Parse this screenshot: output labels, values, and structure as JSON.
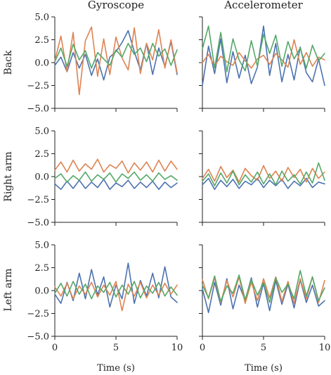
{
  "chart_data": {
    "type": "line",
    "colors": [
      "#4c72b0",
      "#dd8452",
      "#55a868"
    ],
    "column_titles": [
      "Gyroscope",
      "Accelerometer"
    ],
    "row_labels": [
      "Back",
      "Right arm",
      "Left arm"
    ],
    "xlabel": "Time (s)",
    "xlim": [
      0,
      10
    ],
    "ylim": [
      -5.0,
      5.0
    ],
    "xticks": [
      0,
      5,
      10
    ],
    "xtick_labels": [
      "0",
      "5",
      "10"
    ],
    "yticks": [
      5.0,
      2.5,
      0.0,
      -2.5,
      -5.0
    ],
    "ytick_labels": [
      "5.0",
      "2.5",
      "0.0",
      "−2.5",
      "−5.0"
    ],
    "grid": false,
    "legend": "none",
    "panels": [
      {
        "row": "Back",
        "column": "Gyroscope",
        "series": [
          {
            "x": [
              0,
              0.5,
              1,
              1.5,
              2,
              2.5,
              3,
              3.5,
              4,
              4.5,
              5,
              5.5,
              6,
              6.5,
              7,
              7.5,
              8,
              8.5,
              9,
              9.5,
              10
            ],
            "values": [
              -0.3,
              0.6,
              -1.0,
              1.1,
              -0.6,
              0.9,
              -1.4,
              0.4,
              -1.9,
              0.6,
              1.2,
              2.2,
              3.5,
              1.2,
              -0.8,
              2.1,
              -1.3,
              1.6,
              -0.4,
              2.3,
              -1.3
            ]
          },
          {
            "x": [
              0,
              0.5,
              1,
              1.5,
              2,
              2.5,
              3,
              3.5,
              4,
              4.5,
              5,
              5.5,
              6,
              6.5,
              7,
              7.5,
              8,
              8.5,
              9,
              9.5,
              10
            ],
            "values": [
              0.2,
              2.9,
              -1.0,
              3.3,
              -3.5,
              2.4,
              3.9,
              -1.5,
              2.6,
              -1.3,
              2.8,
              0.5,
              -0.8,
              3.8,
              -1.2,
              2.1,
              0.3,
              3.6,
              -0.6,
              2.5,
              -1.1
            ]
          },
          {
            "x": [
              0,
              0.5,
              1,
              1.5,
              2,
              2.5,
              3,
              3.5,
              4,
              4.5,
              5,
              5.5,
              6,
              6.5,
              7,
              7.5,
              8,
              8.5,
              9,
              9.5,
              10
            ],
            "values": [
              0.1,
              1.6,
              -0.4,
              2.0,
              0.3,
              1.3,
              -0.6,
              1.1,
              0.4,
              -0.3,
              1.4,
              0.6,
              2.1,
              0.9,
              1.6,
              0.1,
              2.1,
              0.7,
              1.5,
              -0.3,
              1.4
            ]
          }
        ]
      },
      {
        "row": "Back",
        "column": "Accelerometer",
        "series": [
          {
            "x": [
              0,
              0.5,
              1,
              1.5,
              2,
              2.5,
              3,
              3.5,
              4,
              4.5,
              5,
              5.5,
              6,
              6.5,
              7,
              7.5,
              8,
              8.5,
              9,
              9.5,
              10
            ],
            "values": [
              -2.5,
              1.8,
              -1.2,
              2.6,
              -2.2,
              1.2,
              -1.7,
              0.8,
              -2.3,
              -0.5,
              4.0,
              -1.4,
              2.1,
              -2.1,
              0.9,
              -1.9,
              1.7,
              -1.1,
              -2.1,
              0.4,
              -2.5
            ]
          },
          {
            "x": [
              0,
              0.5,
              1,
              1.5,
              2,
              2.5,
              3,
              3.5,
              4,
              4.5,
              5,
              5.5,
              6,
              6.5,
              7,
              7.5,
              8,
              8.5,
              9,
              9.5,
              10
            ],
            "values": [
              0.0,
              0.9,
              -0.4,
              0.7,
              0.1,
              -0.3,
              1.1,
              0.2,
              -0.6,
              0.4,
              0.8,
              -0.2,
              1.0,
              0.3,
              -0.5,
              2.5,
              -0.2,
              1.1,
              -0.4,
              0.6,
              0.3
            ]
          },
          {
            "x": [
              0,
              0.5,
              1,
              1.5,
              2,
              2.5,
              3,
              3.5,
              4,
              4.5,
              5,
              5.5,
              6,
              6.5,
              7,
              7.5,
              8,
              8.5,
              9,
              9.5,
              10
            ],
            "values": [
              1.5,
              4.0,
              -0.6,
              3.3,
              -1.0,
              2.6,
              0.3,
              -0.9,
              2.4,
              -0.4,
              3.1,
              1.0,
              3.0,
              -0.4,
              2.3,
              0.4,
              1.6,
              -0.6,
              1.9,
              0.2,
              1.0
            ]
          }
        ]
      },
      {
        "row": "Right arm",
        "column": "Gyroscope",
        "series": [
          {
            "x": [
              0,
              0.5,
              1,
              1.5,
              2,
              2.5,
              3,
              3.5,
              4,
              4.5,
              5,
              5.5,
              6,
              6.5,
              7,
              7.5,
              8,
              8.5,
              9,
              9.5,
              10
            ],
            "values": [
              -0.8,
              -1.4,
              -0.5,
              -1.3,
              -0.4,
              -1.3,
              -0.6,
              -1.2,
              -0.3,
              -1.4,
              -0.7,
              -1.1,
              -0.4,
              -1.3,
              -0.6,
              -1.2,
              -0.5,
              -1.4,
              -0.6,
              -1.2,
              -0.7
            ]
          },
          {
            "x": [
              0,
              0.5,
              1,
              1.5,
              2,
              2.5,
              3,
              3.5,
              4,
              4.5,
              5,
              5.5,
              6,
              6.5,
              7,
              7.5,
              8,
              8.5,
              9,
              9.5,
              10
            ],
            "values": [
              0.7,
              1.6,
              0.5,
              1.8,
              0.6,
              1.4,
              0.8,
              1.9,
              0.5,
              1.3,
              0.9,
              1.7,
              0.4,
              1.5,
              0.7,
              1.6,
              0.5,
              1.8,
              0.6,
              1.7,
              0.8
            ]
          },
          {
            "x": [
              0,
              0.5,
              1,
              1.5,
              2,
              2.5,
              3,
              3.5,
              4,
              4.5,
              5,
              5.5,
              6,
              6.5,
              7,
              7.5,
              8,
              8.5,
              9,
              9.5,
              10
            ],
            "values": [
              -0.2,
              0.3,
              -0.6,
              0.1,
              -0.4,
              0.5,
              -0.5,
              0.2,
              -0.3,
              0.4,
              -0.6,
              0.3,
              -0.2,
              0.5,
              -0.4,
              0.2,
              -0.5,
              0.4,
              -0.3,
              0.1,
              -0.4
            ]
          }
        ]
      },
      {
        "row": "Right arm",
        "column": "Accelerometer",
        "series": [
          {
            "x": [
              0,
              0.5,
              1,
              1.5,
              2,
              2.5,
              3,
              3.5,
              4,
              4.5,
              5,
              5.5,
              6,
              6.5,
              7,
              7.5,
              8,
              8.5,
              9,
              9.5,
              10
            ],
            "values": [
              -0.9,
              -0.2,
              -1.4,
              -0.4,
              -1.1,
              -0.3,
              -1.3,
              -0.5,
              -0.9,
              -0.2,
              -1.2,
              -0.4,
              -1.0,
              -0.3,
              -1.3,
              -0.5,
              -1.0,
              -0.2,
              -1.2,
              -0.6,
              -0.8
            ]
          },
          {
            "x": [
              0,
              0.5,
              1,
              1.5,
              2,
              2.5,
              3,
              3.5,
              4,
              4.5,
              5,
              5.5,
              6,
              6.5,
              7,
              7.5,
              8,
              8.5,
              9,
              9.5,
              10
            ],
            "values": [
              -0.2,
              0.8,
              -0.5,
              1.1,
              -0.1,
              0.7,
              -0.6,
              0.9,
              0.1,
              -0.4,
              1.2,
              -0.2,
              0.6,
              -0.5,
              1.0,
              -0.1,
              0.8,
              -0.6,
              0.9,
              -0.2,
              0.5
            ]
          },
          {
            "x": [
              0,
              0.5,
              1,
              1.5,
              2,
              2.5,
              3,
              3.5,
              4,
              4.5,
              5,
              5.5,
              6,
              6.5,
              7,
              7.5,
              8,
              8.5,
              9,
              9.5,
              10
            ],
            "values": [
              -0.5,
              0.3,
              -1.0,
              0.4,
              -0.7,
              0.6,
              -0.9,
              0.2,
              -0.6,
              0.5,
              -0.8,
              0.3,
              -0.9,
              0.6,
              -0.5,
              0.2,
              -0.8,
              0.5,
              -0.7,
              1.5,
              -0.4
            ]
          }
        ]
      },
      {
        "row": "Left arm",
        "column": "Gyroscope",
        "series": [
          {
            "x": [
              0,
              0.5,
              1,
              1.5,
              2,
              2.5,
              3,
              3.5,
              4,
              4.5,
              5,
              5.5,
              6,
              6.5,
              7,
              7.5,
              8,
              8.5,
              9,
              9.5,
              10
            ],
            "values": [
              -0.4,
              -1.4,
              0.9,
              -1.1,
              1.9,
              -0.9,
              2.3,
              -0.5,
              1.5,
              -1.8,
              0.6,
              -0.9,
              3.0,
              -1.4,
              1.1,
              -0.6,
              1.9,
              -0.8,
              2.6,
              -0.7,
              -1.3
            ]
          },
          {
            "x": [
              0,
              0.5,
              1,
              1.5,
              2,
              2.5,
              3,
              3.5,
              4,
              4.5,
              5,
              5.5,
              6,
              6.5,
              7,
              7.5,
              8,
              8.5,
              9,
              9.5,
              10
            ],
            "values": [
              0.4,
              -0.6,
              0.8,
              -0.9,
              0.5,
              -0.4,
              0.9,
              -0.7,
              0.6,
              -0.5,
              1.0,
              -2.2,
              0.7,
              -0.6,
              0.9,
              -0.8,
              0.6,
              -0.5,
              0.8,
              -0.4,
              0.6
            ]
          },
          {
            "x": [
              0,
              0.5,
              1,
              1.5,
              2,
              2.5,
              3,
              3.5,
              4,
              4.5,
              5,
              5.5,
              6,
              6.5,
              7,
              7.5,
              8,
              8.5,
              9,
              9.5,
              10
            ],
            "values": [
              -0.3,
              0.8,
              -0.6,
              1.0,
              -0.4,
              0.7,
              -0.9,
              0.5,
              -0.2,
              0.9,
              -0.7,
              0.6,
              -0.4,
              1.0,
              -0.8,
              0.5,
              -0.3,
              0.9,
              -0.6,
              0.4,
              -0.5
            ]
          }
        ]
      },
      {
        "row": "Left arm",
        "column": "Accelerometer",
        "series": [
          {
            "x": [
              0,
              0.5,
              1,
              1.5,
              2,
              2.5,
              3,
              3.5,
              4,
              4.5,
              5,
              5.5,
              6,
              6.5,
              7,
              7.5,
              8,
              8.5,
              9,
              9.5,
              10
            ],
            "values": [
              0.2,
              -2.4,
              0.9,
              -1.6,
              1.3,
              -2.0,
              0.6,
              -1.1,
              1.4,
              -1.8,
              0.8,
              -2.2,
              1.1,
              -1.5,
              0.7,
              -1.9,
              1.2,
              -1.3,
              0.6,
              -1.7,
              -1.1
            ]
          },
          {
            "x": [
              0,
              0.5,
              1,
              1.5,
              2,
              2.5,
              3,
              3.5,
              4,
              4.5,
              5,
              5.5,
              6,
              6.5,
              7,
              7.5,
              8,
              8.5,
              9,
              9.5,
              10
            ],
            "values": [
              1.2,
              -0.9,
              1.4,
              -1.3,
              1.1,
              -0.7,
              1.5,
              -1.4,
              0.9,
              -1.1,
              1.3,
              -0.8,
              1.5,
              -1.2,
              1.0,
              -1.4,
              1.3,
              -0.9,
              1.5,
              -1.3,
              1.1
            ]
          },
          {
            "x": [
              0,
              0.5,
              1,
              1.5,
              2,
              2.5,
              3,
              3.5,
              4,
              4.5,
              5,
              5.5,
              6,
              6.5,
              7,
              7.5,
              8,
              8.5,
              9,
              9.5,
              10
            ],
            "values": [
              0.6,
              -0.8,
              1.6,
              -1.2,
              0.5,
              -0.3,
              1.7,
              -1.0,
              1.2,
              -0.5,
              0.9,
              -1.3,
              1.4,
              -0.2,
              0.7,
              -0.9,
              2.2,
              -0.6,
              1.5,
              -1.1,
              0.3
            ]
          }
        ]
      }
    ]
  }
}
